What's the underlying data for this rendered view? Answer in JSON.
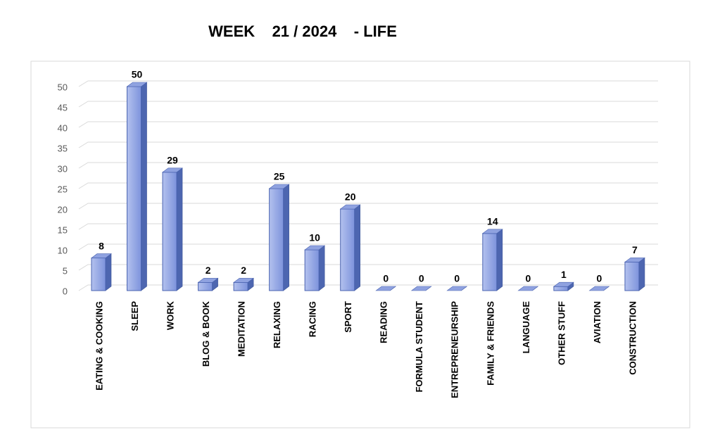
{
  "chart_data": {
    "type": "bar3d",
    "title": "WEEK    21 / 2024    - LIFE",
    "categories": [
      "EATING & COOKING",
      "SLEEP",
      "WORK",
      "BLOG & BOOK",
      "MEDITATION",
      "RELAXING",
      "RACING",
      "SPORT",
      "READING",
      "FORMULA STUDENT",
      "ENTREPRENEURSHIP",
      "FAMILY & FRIENDS",
      "LANGUAGE",
      "OTHER STUFF",
      "AVIATION",
      "CONSTRUCTION"
    ],
    "values": [
      8,
      50,
      29,
      2,
      2,
      25,
      10,
      20,
      0,
      0,
      0,
      14,
      0,
      1,
      0,
      7
    ],
    "color": "#8fa2e0",
    "ylim": [
      0,
      50
    ],
    "yticks": [
      0,
      5,
      10,
      15,
      20,
      25,
      30,
      35,
      40,
      45,
      50
    ],
    "grid": true
  }
}
